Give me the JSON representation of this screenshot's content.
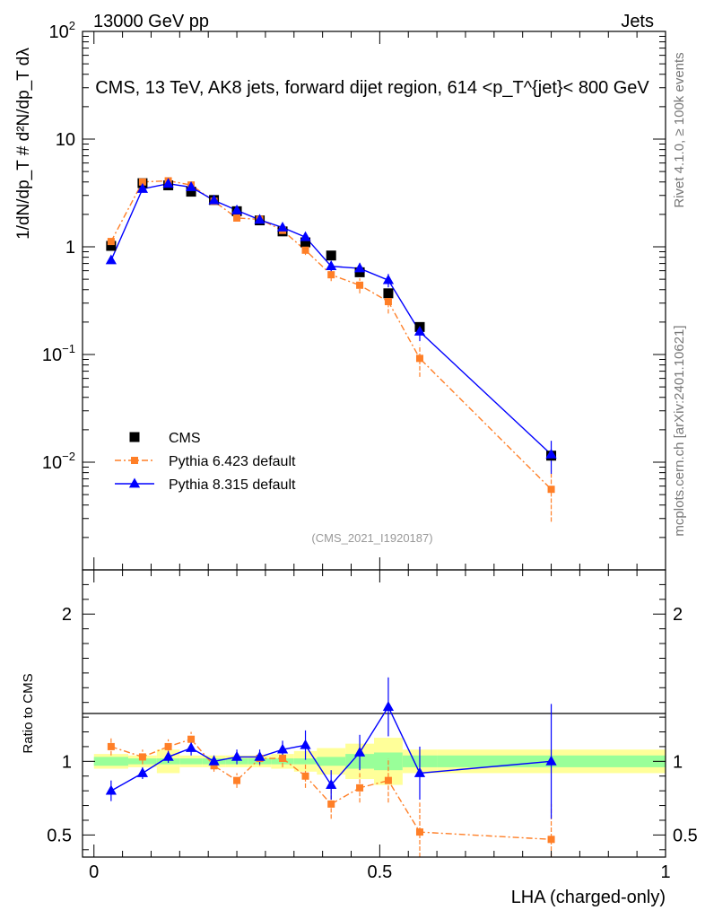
{
  "header": {
    "energy": "13000 GeV pp",
    "category": "Jets"
  },
  "side_labels": {
    "rivet": "Rivet 4.1.0, ≥ 100k events",
    "mcplots": "mcplots.cern.ch [arXiv:2401.10621]"
  },
  "watermark": "(CMS_2021_I1920187)",
  "chart_data": [
    {
      "type": "line",
      "title": "CMS, 13 TeV, AK8 jets, forward dijet region, 614 <p_T^{jet}< 800 GeV",
      "ylabel": "1/dN/dp_T # d²N/dp_T dλ",
      "yscale": "log",
      "ylim": [
        0.001,
        100
      ],
      "xlim": [
        -0.02,
        1.0
      ],
      "yticks": [
        "10^-2",
        "10^-1",
        "1",
        "10",
        "10^2"
      ],
      "legend": {
        "position": "lower-left",
        "entries": [
          "CMS",
          "Pythia 6.423 default",
          "Pythia 8.315 default"
        ]
      },
      "series": [
        {
          "name": "CMS",
          "color": "#000000",
          "marker": "square",
          "x": [
            0.03,
            0.085,
            0.13,
            0.17,
            0.21,
            0.25,
            0.29,
            0.33,
            0.37,
            0.415,
            0.465,
            0.515,
            0.57,
            0.8
          ],
          "y": [
            1.02,
            3.9,
            3.72,
            3.25,
            2.72,
            2.14,
            1.76,
            1.39,
            1.1,
            0.83,
            0.58,
            0.37,
            0.18,
            0.0115
          ]
        },
        {
          "name": "Pythia 6.423 default",
          "color": "#ff7f27",
          "marker": "square",
          "x": [
            0.03,
            0.085,
            0.13,
            0.17,
            0.21,
            0.25,
            0.29,
            0.33,
            0.37,
            0.415,
            0.465,
            0.515,
            0.57,
            0.8
          ],
          "y": [
            1.12,
            4.0,
            4.1,
            3.75,
            2.65,
            1.85,
            1.8,
            1.42,
            0.93,
            0.55,
            0.44,
            0.31,
            0.092,
            0.0056
          ],
          "err": [
            0.06,
            0.2,
            0.2,
            0.18,
            0.1,
            0.08,
            0.08,
            0.08,
            0.09,
            0.07,
            0.07,
            0.07,
            0.03,
            0.0028
          ]
        },
        {
          "name": "Pythia 8.315 default",
          "color": "#0000ff",
          "marker": "triangle",
          "x": [
            0.03,
            0.085,
            0.13,
            0.17,
            0.21,
            0.25,
            0.29,
            0.33,
            0.37,
            0.415,
            0.465,
            0.515,
            0.57,
            0.8
          ],
          "y": [
            0.75,
            3.45,
            3.85,
            3.58,
            2.7,
            2.18,
            1.78,
            1.51,
            1.23,
            0.66,
            0.63,
            0.49,
            0.163,
            0.0118
          ],
          "err": [
            0.05,
            0.15,
            0.15,
            0.15,
            0.1,
            0.08,
            0.08,
            0.08,
            0.12,
            0.08,
            0.08,
            0.07,
            0.03,
            0.004
          ]
        }
      ]
    },
    {
      "type": "line",
      "title": "",
      "xlabel": "LHA (charged-only)",
      "ylabel": "Ratio to CMS",
      "ylim": [
        0.35,
        2.3
      ],
      "xlim": [
        -0.02,
        1.0
      ],
      "xticks": [
        "0",
        "0.5",
        "1"
      ],
      "yticks": [
        "0.5",
        "1",
        "2"
      ],
      "bands": {
        "edges": [
          0.0,
          0.06,
          0.11,
          0.15,
          0.19,
          0.23,
          0.27,
          0.31,
          0.35,
          0.39,
          0.44,
          0.49,
          0.54,
          0.6,
          1.0
        ],
        "green": [
          0.03,
          0.02,
          0.02,
          0.02,
          0.02,
          0.02,
          0.02,
          0.02,
          0.02,
          0.03,
          0.05,
          0.06,
          0.04,
          0.04
        ],
        "yellow": [
          0.05,
          0.04,
          0.08,
          0.04,
          0.04,
          0.04,
          0.04,
          0.05,
          0.07,
          0.09,
          0.12,
          0.16,
          0.08,
          0.08
        ]
      },
      "series": [
        {
          "name": "Pythia 6.423 default",
          "color": "#ff7f27",
          "marker": "square",
          "x": [
            0.03,
            0.085,
            0.13,
            0.17,
            0.21,
            0.25,
            0.29,
            0.33,
            0.37,
            0.415,
            0.465,
            0.515,
            0.57,
            0.8
          ],
          "y": [
            1.1,
            1.03,
            1.1,
            1.15,
            0.97,
            0.87,
            1.02,
            1.02,
            0.9,
            0.71,
            0.82,
            0.87,
            0.52,
            0.47
          ],
          "err": [
            0.06,
            0.05,
            0.05,
            0.05,
            0.04,
            0.05,
            0.05,
            0.06,
            0.08,
            0.1,
            0.1,
            0.15,
            0.2,
            0.24
          ]
        },
        {
          "name": "Pythia 8.315 default",
          "color": "#0000ff",
          "marker": "triangle",
          "x": [
            0.03,
            0.085,
            0.13,
            0.17,
            0.21,
            0.25,
            0.29,
            0.33,
            0.37,
            0.415,
            0.465,
            0.515,
            0.57,
            0.8
          ],
          "y": [
            0.8,
            0.92,
            1.03,
            1.09,
            1.0,
            1.03,
            1.03,
            1.08,
            1.11,
            0.84,
            1.06,
            1.37,
            0.92,
            1.0
          ],
          "err": [
            0.07,
            0.04,
            0.04,
            0.05,
            0.04,
            0.05,
            0.05,
            0.06,
            0.1,
            0.1,
            0.12,
            0.2,
            0.18,
            0.39
          ]
        }
      ]
    }
  ]
}
